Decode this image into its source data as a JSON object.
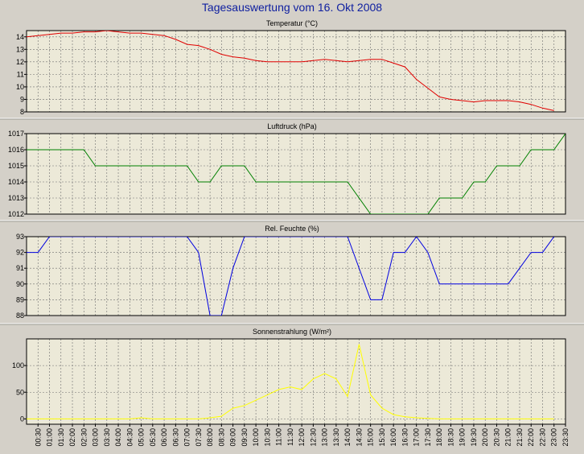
{
  "title": "Tagesauswertung vom 16. Okt 2008",
  "colors": {
    "background": "#d4d0c8",
    "plot_bg": "#ece9d8",
    "grid": "#6e6e6e"
  },
  "time_labels": [
    "00:30",
    "01:00",
    "01:30",
    "02:00",
    "02:30",
    "03:00",
    "03:30",
    "04:00",
    "04:30",
    "05:00",
    "05:30",
    "06:00",
    "06:30",
    "07:00",
    "07:30",
    "08:00",
    "08:30",
    "09:00",
    "09:30",
    "10:00",
    "10:30",
    "11:00",
    "11:30",
    "12:00",
    "12:30",
    "13:00",
    "13:30",
    "14:00",
    "14:30",
    "15:00",
    "15:30",
    "16:00",
    "16:30",
    "17:00",
    "17:30",
    "18:00",
    "18:30",
    "19:00",
    "19:30",
    "20:00",
    "20:30",
    "21:00",
    "21:30",
    "22:00",
    "22:30",
    "23:00",
    "23:30"
  ],
  "chart_data": [
    {
      "type": "line",
      "title": "Temperatur (°C)",
      "ylim": [
        8,
        14.5
      ],
      "yticks": [
        8,
        9,
        10,
        11,
        12,
        13,
        14
      ],
      "grid": true,
      "color": "#e00000",
      "x": [
        "00:00",
        "00:30",
        "01:00",
        "01:30",
        "02:00",
        "02:30",
        "03:00",
        "03:30",
        "04:00",
        "04:30",
        "05:00",
        "05:30",
        "06:00",
        "06:30",
        "07:00",
        "07:30",
        "08:00",
        "08:30",
        "09:00",
        "09:30",
        "10:00",
        "10:30",
        "11:00",
        "11:30",
        "12:00",
        "12:30",
        "13:00",
        "13:30",
        "14:00",
        "14:30",
        "15:00",
        "15:30",
        "16:00",
        "16:30",
        "17:00",
        "17:30",
        "18:00",
        "18:30",
        "19:00",
        "19:30",
        "20:00",
        "20:30",
        "21:00",
        "21:30",
        "22:00",
        "22:30",
        "23:00"
      ],
      "values": [
        14.0,
        14.1,
        14.2,
        14.3,
        14.3,
        14.4,
        14.4,
        14.5,
        14.4,
        14.3,
        14.3,
        14.2,
        14.1,
        13.8,
        13.4,
        13.3,
        13.0,
        12.6,
        12.4,
        12.3,
        12.1,
        12.0,
        12.0,
        12.0,
        12.0,
        12.1,
        12.2,
        12.1,
        12.0,
        12.1,
        12.2,
        12.2,
        11.9,
        11.6,
        10.6,
        9.9,
        9.2,
        9.0,
        8.9,
        8.8,
        8.9,
        8.9,
        8.9,
        8.8,
        8.6,
        8.3,
        8.1
      ]
    },
    {
      "type": "line",
      "title": "Luftdruck (hPa)",
      "ylim": [
        1012,
        1017
      ],
      "yticks": [
        1012,
        1013,
        1014,
        1015,
        1016,
        1017
      ],
      "grid": true,
      "color": "#008000",
      "x": [
        "00:00",
        "02:30",
        "03:00",
        "07:00",
        "07:30",
        "08:00",
        "08:30",
        "09:30",
        "10:00",
        "14:00",
        "15:00",
        "17:30",
        "18:00",
        "19:00",
        "19:30",
        "20:00",
        "20:30",
        "21:30",
        "22:00",
        "23:00",
        "23:30"
      ],
      "values": [
        1016,
        1016,
        1015,
        1015,
        1014,
        1014,
        1015,
        1015,
        1014,
        1014,
        1012,
        1012,
        1013,
        1013,
        1014,
        1014,
        1015,
        1015,
        1016,
        1016,
        1017
      ]
    },
    {
      "type": "line",
      "title": "Rel. Feuchte (%)",
      "ylim": [
        88,
        93
      ],
      "yticks": [
        88,
        89,
        90,
        91,
        92,
        93
      ],
      "grid": true,
      "color": "#0000e0",
      "x": [
        "00:00",
        "00:30",
        "01:00",
        "07:00",
        "07:30",
        "08:00",
        "08:30",
        "09:00",
        "09:30",
        "14:00",
        "15:00",
        "15:30",
        "16:00",
        "16:30",
        "17:00",
        "17:30",
        "18:00",
        "21:00",
        "22:00",
        "22:30",
        "23:00"
      ],
      "values": [
        92,
        92,
        93,
        93,
        92,
        88,
        88,
        91,
        93,
        93,
        89,
        89,
        92,
        92,
        93,
        92,
        90,
        90,
        92,
        92,
        93
      ]
    },
    {
      "type": "line",
      "title": "Sonnenstrahlung (W/m²)",
      "ylim": [
        -10,
        150
      ],
      "yticks": [
        0,
        50,
        100
      ],
      "grid": true,
      "color": "#ffff00",
      "x": [
        "00:00",
        "04:00",
        "04:30",
        "05:00",
        "05:30",
        "06:00",
        "07:00",
        "07:30",
        "08:00",
        "08:30",
        "09:00",
        "09:30",
        "10:00",
        "10:30",
        "11:00",
        "11:30",
        "12:00",
        "12:30",
        "13:00",
        "13:30",
        "14:00",
        "14:30",
        "15:00",
        "15:30",
        "16:00",
        "16:30",
        "17:00",
        "17:30",
        "18:00",
        "23:00"
      ],
      "values": [
        0,
        0,
        0,
        2,
        0,
        0,
        0,
        0,
        2,
        5,
        20,
        25,
        35,
        45,
        55,
        60,
        55,
        75,
        85,
        75,
        42,
        140,
        45,
        20,
        8,
        4,
        2,
        1,
        0,
        0
      ]
    }
  ]
}
